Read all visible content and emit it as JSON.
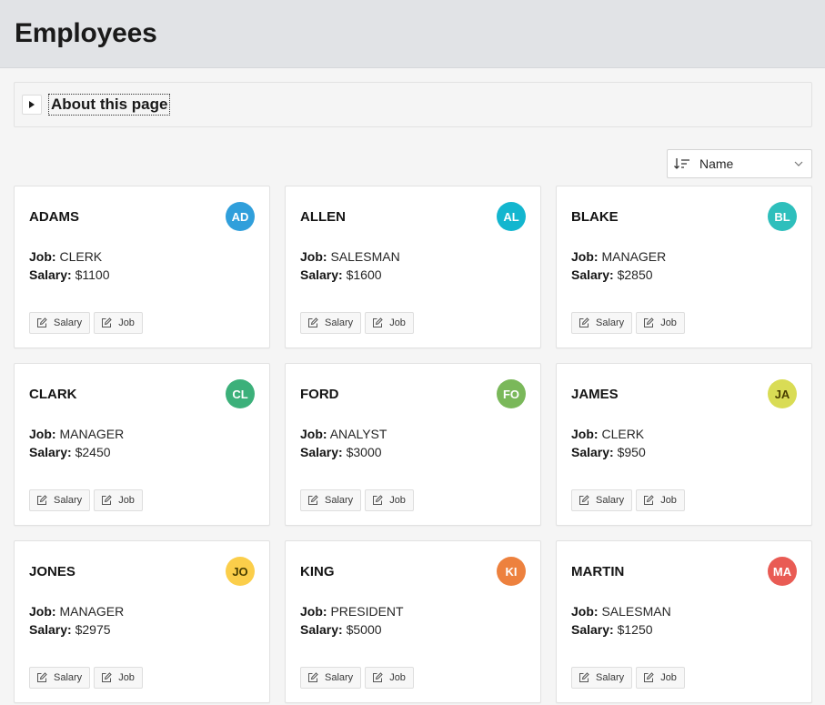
{
  "page": {
    "title": "Employees"
  },
  "about": {
    "label": "About this page"
  },
  "sort": {
    "selected": "Name"
  },
  "actions": {
    "salary_label": "Salary",
    "job_label": "Job"
  },
  "labels": {
    "job": "Job:",
    "salary": "Salary:"
  },
  "employees": [
    {
      "name": "ADAMS",
      "initials": "AD",
      "job": "CLERK",
      "salary": "$1100",
      "color": "#309fdb",
      "dark": false
    },
    {
      "name": "ALLEN",
      "initials": "AL",
      "job": "SALESMAN",
      "salary": "$1600",
      "color": "#13b6cf",
      "dark": false
    },
    {
      "name": "BLAKE",
      "initials": "BL",
      "job": "MANAGER",
      "salary": "$2850",
      "color": "#2ebfbc",
      "dark": false
    },
    {
      "name": "CLARK",
      "initials": "CL",
      "job": "MANAGER",
      "salary": "$2450",
      "color": "#3cb07a",
      "dark": false
    },
    {
      "name": "FORD",
      "initials": "FO",
      "job": "ANALYST",
      "salary": "$3000",
      "color": "#7ab85a",
      "dark": false
    },
    {
      "name": "JAMES",
      "initials": "JA",
      "job": "CLERK",
      "salary": "$950",
      "color": "#d9dc55",
      "dark": true
    },
    {
      "name": "JONES",
      "initials": "JO",
      "job": "MANAGER",
      "salary": "$2975",
      "color": "#fbce4a",
      "dark": true
    },
    {
      "name": "KING",
      "initials": "KI",
      "job": "PRESIDENT",
      "salary": "$5000",
      "color": "#ed813e",
      "dark": false
    },
    {
      "name": "MARTIN",
      "initials": "MA",
      "job": "SALESMAN",
      "salary": "$1250",
      "color": "#e95b54",
      "dark": false
    }
  ]
}
